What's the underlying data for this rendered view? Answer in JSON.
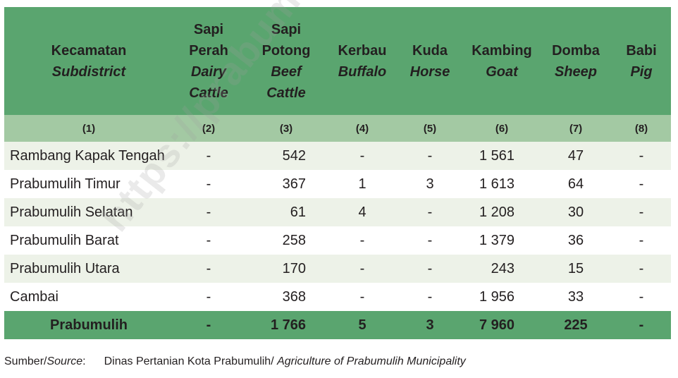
{
  "table": {
    "headers": [
      {
        "id": [
          "Kecamatan"
        ],
        "en": [
          "Subdistrict"
        ]
      },
      {
        "id": [
          "Sapi",
          "Perah"
        ],
        "en": [
          "Dairy",
          "Cattle"
        ]
      },
      {
        "id": [
          "Sapi",
          "Potong"
        ],
        "en": [
          "Beef",
          "Cattle"
        ]
      },
      {
        "id": [
          "Kerbau"
        ],
        "en": [
          "Buffalo"
        ]
      },
      {
        "id": [
          "Kuda"
        ],
        "en": [
          "Horse"
        ]
      },
      {
        "id": [
          "Kambing"
        ],
        "en": [
          "Goat"
        ]
      },
      {
        "id": [
          "Domba"
        ],
        "en": [
          "Sheep"
        ]
      },
      {
        "id": [
          "Babi"
        ],
        "en": [
          "Pig"
        ]
      }
    ],
    "column_numbers": [
      "(1)",
      "(2)",
      "(3)",
      "(4)",
      "(5)",
      "(6)",
      "(7)",
      "(8)"
    ],
    "rows": [
      [
        "Rambang Kapak Tengah",
        "-",
        "542",
        "-",
        "-",
        "1 561",
        "47",
        "-"
      ],
      [
        "Prabumulih Timur",
        "-",
        "367",
        "1",
        "3",
        "1 613",
        "64",
        "-"
      ],
      [
        "Prabumulih Selatan",
        "-",
        "61",
        "4",
        "-",
        "1 208",
        "30",
        "-"
      ],
      [
        "Prabumulih Barat",
        "-",
        "258",
        "-",
        "-",
        "1 379",
        "36",
        "-"
      ],
      [
        "Prabumulih Utara",
        "-",
        "170",
        "-",
        "-",
        "243",
        "15",
        "-"
      ],
      [
        "Cambai",
        "-",
        "368",
        "-",
        "-",
        "1 956",
        "33",
        "-"
      ]
    ],
    "total": [
      "Prabumulih",
      "-",
      "1 766",
      "5",
      "3",
      "7 960",
      "225",
      "-"
    ]
  },
  "source": {
    "label_id": "Sumber/",
    "label_en": "Source",
    "colon": ":",
    "text_id": "Dinas Pertanian Kota Prabumulih/ ",
    "text_en": "Agriculture of Prabumulih Municipality"
  },
  "watermark": "https://prabumulihkota.bps.go.id"
}
